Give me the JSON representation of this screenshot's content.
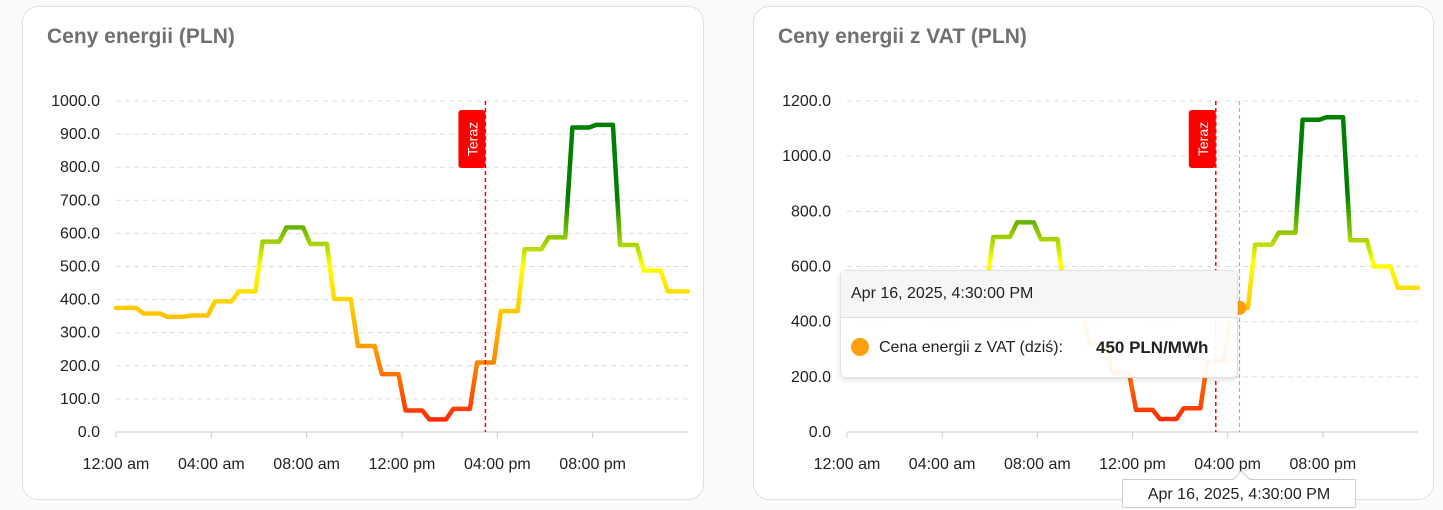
{
  "charts_common": {
    "x_tick_labels": [
      "12:00 am",
      "04:00 am",
      "08:00 am",
      "12:00 pm",
      "04:00 pm",
      "08:00 pm"
    ],
    "now_marker_label": "Teraz",
    "now_hour": 15.5,
    "colors": {
      "now_marker": "#ff0000",
      "low": "#ff1a00",
      "mid_low": "#ff9900",
      "mid": "#ffff00",
      "high": "#008000"
    }
  },
  "chart_data": [
    {
      "type": "line",
      "title": "Ceny energii (PLN)",
      "ylim": [
        0,
        1000
      ],
      "y_ticks": [
        "0.0",
        "100.0",
        "200.0",
        "300.0",
        "400.0",
        "500.0",
        "600.0",
        "700.0",
        "800.0",
        "900.0",
        "1000.0"
      ],
      "x_hours": [
        0,
        1,
        2,
        3,
        4,
        5,
        6,
        7,
        8,
        9,
        10,
        11,
        12,
        13,
        14,
        15,
        16,
        17,
        18,
        19,
        20,
        21,
        22,
        23
      ],
      "values": [
        375,
        358,
        348,
        352,
        395,
        425,
        575,
        618,
        568,
        402,
        260,
        175,
        65,
        38,
        70,
        210,
        365,
        552,
        588,
        920,
        928,
        565,
        488,
        425
      ],
      "grid": true
    },
    {
      "type": "line",
      "title": "Ceny energii z VAT (PLN)",
      "ylim": [
        0,
        1200
      ],
      "y_ticks": [
        "0.0",
        "200.0",
        "400.0",
        "600.0",
        "800.0",
        "1000.0",
        "1200.0"
      ],
      "x_hours": [
        0,
        1,
        2,
        3,
        4,
        5,
        6,
        7,
        8,
        9,
        10,
        11,
        12,
        13,
        14,
        15,
        16,
        17,
        18,
        19,
        20,
        21,
        22,
        23
      ],
      "values": [
        461,
        440,
        428,
        433,
        486,
        523,
        707,
        760,
        699,
        494,
        320,
        215,
        80,
        47,
        86,
        258,
        450,
        679,
        723,
        1132,
        1141,
        695,
        600,
        523
      ],
      "grid": true,
      "tooltip": {
        "header": "Apr 16, 2025, 4:30:00 PM",
        "series_label": "Cena energii z VAT (dziś):",
        "value": "450 PLN/MWh",
        "marker_color": "#ff9f0f",
        "hover_hour": 16.5,
        "x_label": "Apr 16, 2025, 4:30:00 PM"
      }
    }
  ]
}
